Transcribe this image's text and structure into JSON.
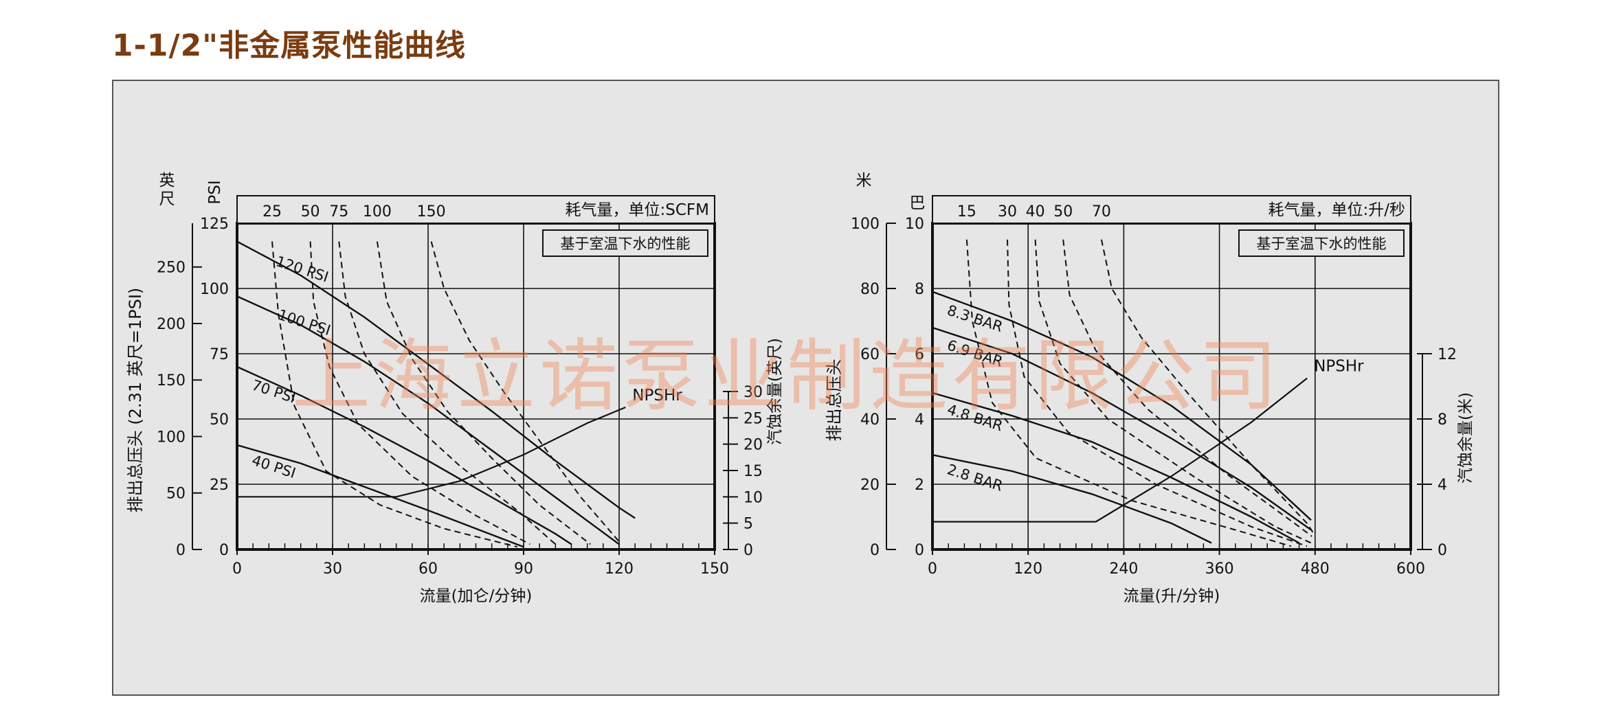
{
  "page": {
    "title": "1-1/2\"非金属泵性能曲线",
    "watermark": "上海立诺泵业制造有限公司"
  },
  "chart_data": [
    {
      "type": "line",
      "title": "",
      "note": "基于室温下水的性能",
      "xlabel": "流量(加仑/分钟)",
      "xlim": [
        0,
        150
      ],
      "xticks": [
        0,
        30,
        60,
        90,
        120,
        150
      ],
      "y_psi": {
        "label": "PSI",
        "lim": [
          0,
          125
        ],
        "ticks": [
          0,
          25,
          50,
          75,
          100,
          125
        ]
      },
      "y_ft": {
        "label_unit": "英尺",
        "label": "排出总压头 (2.31 英尺=1PSI)",
        "lim": [
          0,
          288.75
        ],
        "ticks": [
          0,
          50,
          100,
          150,
          200,
          250
        ]
      },
      "y_npsh": {
        "label": "汽蚀余量(英尺)",
        "lim": [
          0,
          30
        ],
        "ticks": [
          0,
          5,
          10,
          15,
          20,
          25,
          30
        ]
      },
      "air_header": "耗气量，单位:SCFM",
      "air_labels": [
        {
          "label": "25",
          "x": 11
        },
        {
          "label": "50",
          "x": 23
        },
        {
          "label": "75",
          "x": 32
        },
        {
          "label": "100",
          "x": 44
        },
        {
          "label": "150",
          "x": 61
        }
      ],
      "series": [
        {
          "name": "120 PSI",
          "points": [
            [
              0,
              118
            ],
            [
              20,
              105
            ],
            [
              40,
              89
            ],
            [
              60,
              71
            ],
            [
              80,
              53
            ],
            [
              100,
              34
            ],
            [
              120,
              16
            ],
            [
              125,
              12
            ]
          ]
        },
        {
          "name": "100 PSI",
          "points": [
            [
              0,
              97
            ],
            [
              20,
              86
            ],
            [
              40,
              72
            ],
            [
              60,
              56
            ],
            [
              80,
              38
            ],
            [
              100,
              20
            ],
            [
              120,
              2
            ]
          ]
        },
        {
          "name": "70 PSI",
          "points": [
            [
              0,
              70
            ],
            [
              20,
              59
            ],
            [
              40,
              47
            ],
            [
              60,
              34
            ],
            [
              80,
              20
            ],
            [
              100,
              6
            ],
            [
              105,
              2
            ]
          ]
        },
        {
          "name": "40 PSI",
          "points": [
            [
              0,
              40
            ],
            [
              20,
              33
            ],
            [
              40,
              24
            ],
            [
              60,
              15
            ],
            [
              75,
              8
            ],
            [
              90,
              1
            ]
          ]
        }
      ],
      "air_curves": [
        {
          "name": "25",
          "points": [
            [
              11,
              118
            ],
            [
              13,
              90
            ],
            [
              18,
              55
            ],
            [
              28,
              30
            ],
            [
              45,
              17
            ],
            [
              65,
              8
            ],
            [
              88,
              1
            ]
          ]
        },
        {
          "name": "50",
          "points": [
            [
              23,
              118
            ],
            [
              24,
              95
            ],
            [
              29,
              70
            ],
            [
              38,
              48
            ],
            [
              55,
              28
            ],
            [
              75,
              13
            ],
            [
              92,
              2
            ]
          ]
        },
        {
          "name": "75",
          "points": [
            [
              32,
              118
            ],
            [
              34,
              97
            ],
            [
              40,
              75
            ],
            [
              52,
              52
            ],
            [
              70,
              32
            ],
            [
              88,
              15
            ],
            [
              100,
              2
            ]
          ]
        },
        {
          "name": "100",
          "points": [
            [
              44,
              118
            ],
            [
              47,
              95
            ],
            [
              55,
              73
            ],
            [
              66,
              53
            ],
            [
              80,
              35
            ],
            [
              95,
              17
            ],
            [
              111,
              2
            ]
          ]
        },
        {
          "name": "150",
          "points": [
            [
              61,
              118
            ],
            [
              65,
              100
            ],
            [
              73,
              80
            ],
            [
              84,
              60
            ],
            [
              96,
              40
            ],
            [
              108,
              20
            ],
            [
              120,
              3
            ]
          ]
        }
      ],
      "npshr": {
        "name": "NPSHr",
        "points": [
          [
            0,
            10
          ],
          [
            50,
            10
          ],
          [
            70,
            13
          ],
          [
            90,
            18
          ],
          [
            110,
            24
          ],
          [
            122,
            27
          ]
        ]
      }
    },
    {
      "type": "line",
      "title": "",
      "note": "基于室温下水的性能",
      "xlabel": "流量(升/分钟)",
      "xlim": [
        0,
        600
      ],
      "xticks": [
        0,
        120,
        240,
        360,
        480,
        600
      ],
      "y_bar": {
        "label": "巴",
        "lim": [
          0,
          10
        ],
        "ticks": [
          0,
          2,
          4,
          6,
          8,
          10
        ]
      },
      "y_m": {
        "label_unit": "米",
        "label": "排出总压头",
        "lim": [
          0,
          100
        ],
        "ticks": [
          0,
          20,
          40,
          60,
          80,
          100
        ]
      },
      "y_npsh": {
        "label": "汽蚀余量(米)",
        "lim": [
          0,
          12
        ],
        "ticks": [
          0,
          4,
          8,
          12
        ]
      },
      "air_header": "耗气量，单位:升/秒",
      "air_labels": [
        {
          "label": "15",
          "x": 43
        },
        {
          "label": "30",
          "x": 94
        },
        {
          "label": "40",
          "x": 129
        },
        {
          "label": "50",
          "x": 164
        },
        {
          "label": "70",
          "x": 212
        }
      ],
      "series": [
        {
          "name": "8.3 BAR",
          "points": [
            [
              0,
              7.9
            ],
            [
              100,
              7.0
            ],
            [
              200,
              5.9
            ],
            [
              300,
              4.4
            ],
            [
              400,
              2.6
            ],
            [
              475,
              0.9
            ]
          ]
        },
        {
          "name": "6.9 BAR",
          "points": [
            [
              0,
              6.8
            ],
            [
              100,
              6.0
            ],
            [
              200,
              4.8
            ],
            [
              300,
              3.4
            ],
            [
              400,
              1.9
            ],
            [
              475,
              0.6
            ]
          ]
        },
        {
          "name": "4.8 BAR",
          "points": [
            [
              0,
              4.8
            ],
            [
              100,
              4.1
            ],
            [
              200,
              3.3
            ],
            [
              300,
              2.2
            ],
            [
              400,
              1.0
            ],
            [
              460,
              0.2
            ]
          ]
        },
        {
          "name": "2.8 BAR",
          "points": [
            [
              0,
              2.9
            ],
            [
              100,
              2.4
            ],
            [
              200,
              1.7
            ],
            [
              300,
              0.8
            ],
            [
              350,
              0.2
            ]
          ]
        }
      ],
      "air_curves": [
        {
          "name": "15",
          "points": [
            [
              43,
              9.5
            ],
            [
              50,
              7.0
            ],
            [
              75,
              4.5
            ],
            [
              130,
              2.8
            ],
            [
              250,
              1.5
            ],
            [
              380,
              0.6
            ],
            [
              450,
              0.1
            ]
          ]
        },
        {
          "name": "30",
          "points": [
            [
              94,
              9.5
            ],
            [
              96,
              7.5
            ],
            [
              115,
              5.3
            ],
            [
              170,
              3.6
            ],
            [
              280,
              2.0
            ],
            [
              400,
              0.7
            ],
            [
              470,
              0.1
            ]
          ]
        },
        {
          "name": "40",
          "points": [
            [
              129,
              9.5
            ],
            [
              134,
              7.6
            ],
            [
              160,
              5.7
            ],
            [
              220,
              4.0
            ],
            [
              330,
              2.2
            ],
            [
              430,
              0.7
            ],
            [
              475,
              0.2
            ]
          ]
        },
        {
          "name": "50",
          "points": [
            [
              164,
              9.5
            ],
            [
              172,
              7.8
            ],
            [
              205,
              6.1
            ],
            [
              270,
              4.3
            ],
            [
              370,
              2.3
            ],
            [
              460,
              0.7
            ],
            [
              476,
              0.4
            ]
          ]
        },
        {
          "name": "70",
          "points": [
            [
              212,
              9.5
            ],
            [
              225,
              8.0
            ],
            [
              262,
              6.5
            ],
            [
              320,
              4.8
            ],
            [
              400,
              2.6
            ],
            [
              470,
              0.8
            ],
            [
              478,
              0.5
            ]
          ]
        }
      ],
      "npshr": {
        "name": "NPSHr",
        "points": [
          [
            0,
            1.7
          ],
          [
            205,
            1.7
          ],
          [
            300,
            4.5
          ],
          [
            400,
            7.8
          ],
          [
            470,
            10.5
          ]
        ]
      }
    }
  ]
}
